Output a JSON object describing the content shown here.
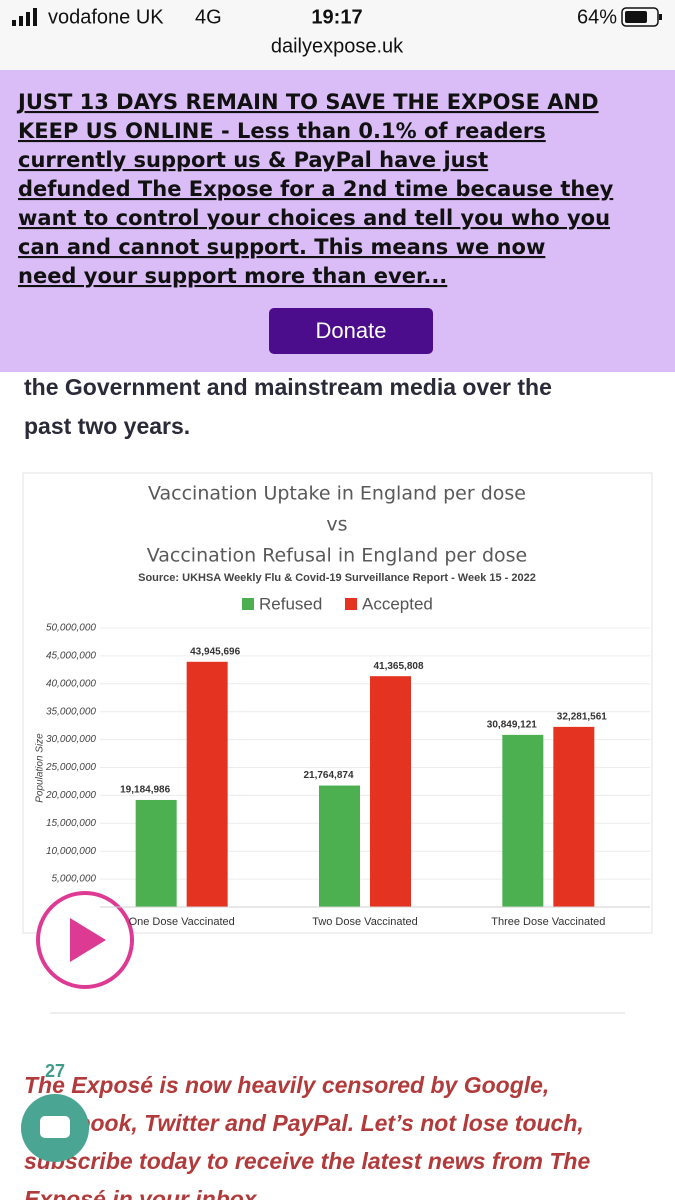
{
  "status_bar": {
    "carrier": "vodafone UK",
    "network": "4G",
    "time": "19:17",
    "battery": "64%",
    "url": "dailyexpose.uk"
  },
  "banner": {
    "lines": [
      "JUST 13 DAYS REMAIN TO SAVE THE EXPOSE AND",
      "KEEP US ONLINE - Less than 0.1% of readers",
      "currently support us & PayPal have just",
      "defunded The Expose for a 2nd time because they",
      "want to control your choices and tell you who you",
      "can and cannot support. This means we now",
      "need your support more than ever..."
    ],
    "button": "Donate"
  },
  "article": {
    "lines": [
      "the Government and mainstream media over the",
      "past two years."
    ]
  },
  "chart_data": {
    "type": "bar",
    "title": [
      "Vaccination Uptake in England per dose",
      "vs",
      "Vaccination Refusal in England per dose"
    ],
    "subtitle": "Source: UKHSA Weekly Flu & Covid-19 Surveillance Report - Week 15 - 2022",
    "y_label": "Population Size",
    "categories": [
      "One Dose Vaccinated",
      "Two Dose Vaccinated",
      "Three Dose Vaccinated"
    ],
    "series": [
      {
        "name": "Refused",
        "color": "#4caf50",
        "values": [
          19184986,
          21764874,
          30849121
        ],
        "value_labels": [
          "19,184,986",
          "21,764,874",
          "30,849,121"
        ]
      },
      {
        "name": "Accepted",
        "color": "#e53322",
        "values": [
          43945696,
          41365808,
          32281561
        ],
        "value_labels": [
          "43,945,696",
          "41,365,808",
          "32,281,561"
        ]
      }
    ],
    "ylim": [
      0,
      50000000
    ],
    "yticks": [
      {
        "value": 5000000,
        "label": "5,000,000"
      },
      {
        "value": 10000000,
        "label": "10,000,000"
      },
      {
        "value": 15000000,
        "label": "15,000,000"
      },
      {
        "value": 20000000,
        "label": "20,000,000"
      },
      {
        "value": 25000000,
        "label": "25,000,000"
      },
      {
        "value": 30000000,
        "label": "30,000,000"
      },
      {
        "value": 35000000,
        "label": "35,000,000"
      },
      {
        "value": 40000000,
        "label": "40,000,000"
      },
      {
        "value": 45000000,
        "label": "45,000,000"
      },
      {
        "value": 50000000,
        "label": "50,000,000"
      }
    ],
    "grid": true
  },
  "footer": {
    "badge": "27",
    "lines": [
      "The Exposé is now heavily censored by Google,",
      "Facebook, Twitter and PayPal. Let’s not lose touch,",
      "subscribe today to receive the latest news from The",
      "Exposé in your inbox"
    ]
  }
}
